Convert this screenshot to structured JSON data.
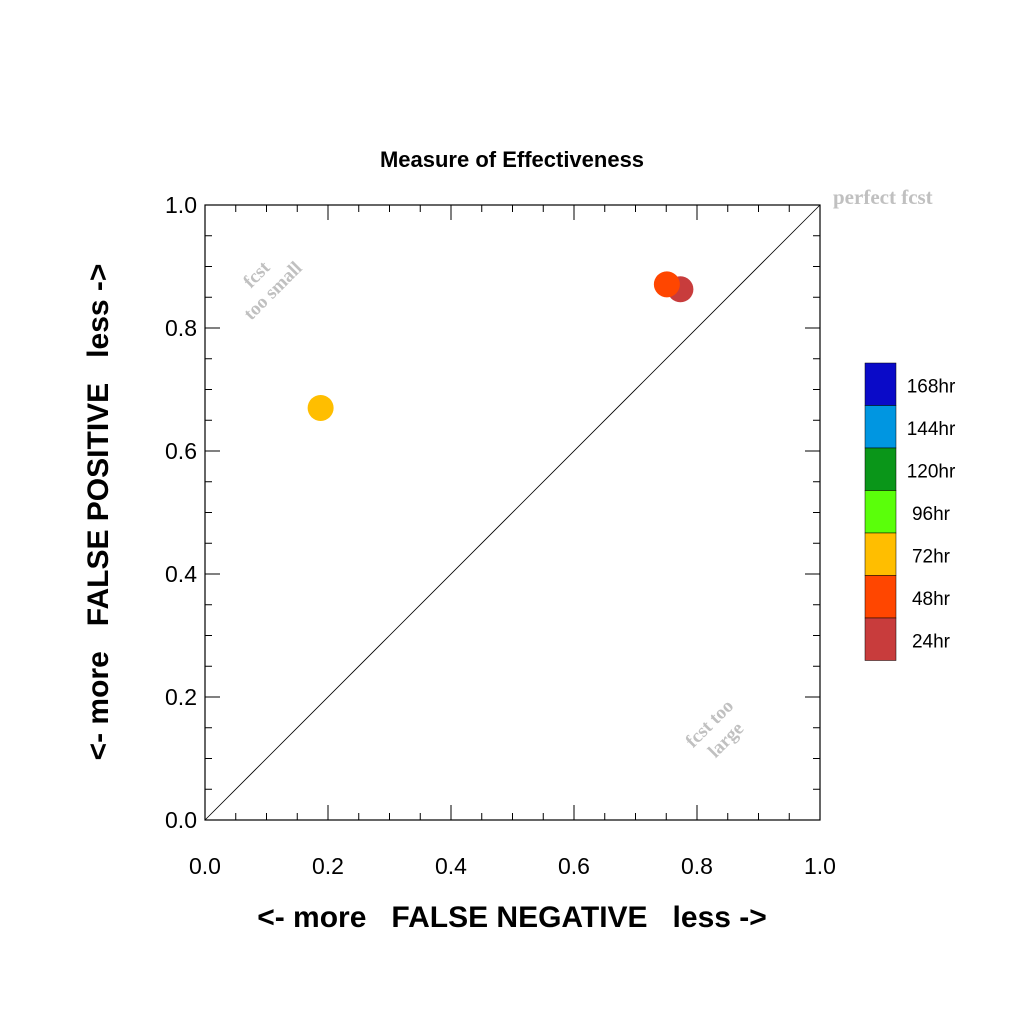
{
  "chart_data": {
    "type": "scatter",
    "title": "Measure of Effectiveness",
    "xlabel": "<- more   FALSE NEGATIVE   less ->",
    "ylabel": "<- more   FALSE POSITIVE   less ->",
    "xlim": [
      0.0,
      1.0
    ],
    "ylim": [
      0.0,
      1.0
    ],
    "xticks": [
      "0.0",
      "0.2",
      "0.4",
      "0.6",
      "0.8",
      "1.0"
    ],
    "yticks": [
      "0.0",
      "0.2",
      "0.4",
      "0.6",
      "0.8",
      "1.0"
    ],
    "grid": false,
    "diagonal_line": true,
    "annotations": {
      "perfect": "perfect fcst",
      "too_small": [
        "fcst",
        "too small"
      ],
      "too_large": [
        "fcst too",
        "large"
      ]
    },
    "legend": {
      "placement": "right",
      "entries": [
        {
          "label": "168hr",
          "color": "#0a0ac8"
        },
        {
          "label": "144hr",
          "color": "#0096e1"
        },
        {
          "label": "120hr",
          "color": "#0a9619"
        },
        {
          "label": "96hr",
          "color": "#5aff0a"
        },
        {
          "label": "72hr",
          "color": "#ffbe00"
        },
        {
          "label": "48hr",
          "color": "#ff4600"
        },
        {
          "label": "24hr",
          "color": "#c83c3c"
        }
      ]
    },
    "points": [
      {
        "series": "24hr",
        "x": 0.773,
        "y": 0.863,
        "color": "#c83c3c"
      },
      {
        "series": "48hr",
        "x": 0.751,
        "y": 0.871,
        "color": "#ff4600"
      },
      {
        "series": "72hr",
        "x": 0.188,
        "y": 0.67,
        "color": "#ffbe00"
      }
    ]
  }
}
